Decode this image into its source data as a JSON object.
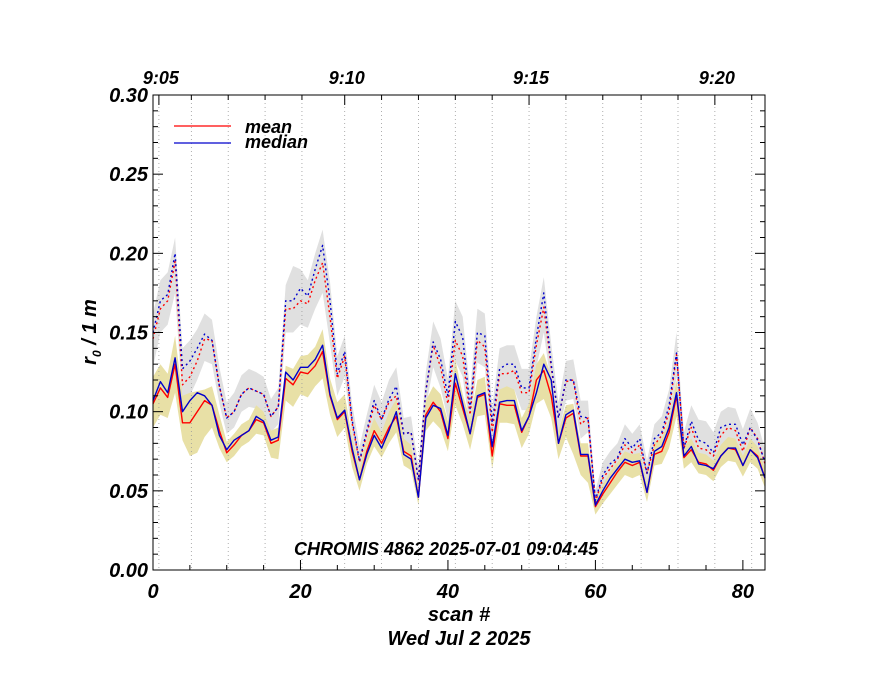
{
  "chart_data": {
    "type": "line",
    "title": "",
    "annotation": "CHROMIS 4862 2025-07-01 09:04:45",
    "xlabel": "scan #",
    "xlabel_date": "Wed Jul  2 2025",
    "ylabel_main": "r",
    "ylabel_sub": "0",
    "ylabel_rest": " / 1 m",
    "xlim": [
      0,
      83
    ],
    "ylim": [
      0,
      0.3
    ],
    "x_ticks": [
      {
        "value": 0,
        "label": "0"
      },
      {
        "value": 20,
        "label": "20"
      },
      {
        "value": 40,
        "label": "40"
      },
      {
        "value": 60,
        "label": "60"
      },
      {
        "value": 80,
        "label": "80"
      }
    ],
    "y_ticks": [
      {
        "value": 0.0,
        "label": "0.00"
      },
      {
        "value": 0.05,
        "label": "0.05"
      },
      {
        "value": 0.1,
        "label": "0.10"
      },
      {
        "value": 0.15,
        "label": "0.15"
      },
      {
        "value": 0.2,
        "label": "0.20"
      },
      {
        "value": 0.25,
        "label": "0.25"
      },
      {
        "value": 0.3,
        "label": "0.30"
      }
    ],
    "top_ticks": [
      {
        "value": 0.8,
        "label": "9:05"
      },
      {
        "value": 26.0,
        "label": "9:10"
      },
      {
        "value": 51.0,
        "label": "9:15"
      },
      {
        "value": 76.2,
        "label": "9:20"
      }
    ],
    "top_minor_ticks": [
      5.2,
      10.2,
      15.2,
      20.2,
      31.0,
      36.0,
      41.0,
      46.0,
      56.0,
      61.0,
      66.2,
      71.2,
      81.2
    ],
    "legend": {
      "position": "top-left",
      "entries": [
        {
          "name": "mean",
          "color": "#ff0000"
        },
        {
          "name": "median",
          "color": "#0000cc"
        }
      ]
    },
    "colors": {
      "mean": "#ff0000",
      "median": "#0000cc",
      "band_solid": "#e8e0a6",
      "band_dotted": "#e0e0e0"
    },
    "x": [
      0,
      1,
      2,
      3,
      4,
      5,
      6,
      7,
      8,
      9,
      10,
      11,
      12,
      13,
      14,
      15,
      16,
      17,
      18,
      19,
      20,
      21,
      22,
      23,
      24,
      25,
      26,
      27,
      28,
      29,
      30,
      31,
      32,
      33,
      34,
      35,
      36,
      37,
      38,
      39,
      40,
      41,
      42,
      43,
      44,
      45,
      46,
      47,
      48,
      49,
      50,
      51,
      52,
      53,
      54,
      55,
      56,
      57,
      58,
      59,
      60,
      61,
      62,
      63,
      64,
      65,
      66,
      67,
      68,
      69,
      70,
      71,
      72,
      73,
      74,
      75,
      76,
      77,
      78,
      79,
      80,
      81,
      82,
      83
    ],
    "series": [
      {
        "name": "mean",
        "values": [
          0.105,
          0.115,
          0.109,
          0.13,
          0.093,
          0.093,
          0.1,
          0.107,
          0.104,
          0.088,
          0.074,
          0.079,
          0.085,
          0.088,
          0.095,
          0.093,
          0.08,
          0.082,
          0.121,
          0.117,
          0.125,
          0.124,
          0.129,
          0.138,
          0.11,
          0.095,
          0.1,
          0.075,
          0.057,
          0.075,
          0.088,
          0.08,
          0.09,
          0.097,
          0.075,
          0.072,
          0.046,
          0.098,
          0.106,
          0.1,
          0.083,
          0.118,
          0.102,
          0.086,
          0.109,
          0.111,
          0.072,
          0.105,
          0.104,
          0.104,
          0.087,
          0.097,
          0.12,
          0.126,
          0.11,
          0.08,
          0.096,
          0.099,
          0.072,
          0.072,
          0.04,
          0.048,
          0.055,
          0.062,
          0.068,
          0.066,
          0.068,
          0.049,
          0.073,
          0.075,
          0.087,
          0.11,
          0.071,
          0.076,
          0.068,
          0.067,
          0.063,
          0.072,
          0.077,
          0.076,
          0.066,
          0.076,
          0.072,
          0.058
        ]
      },
      {
        "name": "median",
        "values": [
          0.107,
          0.119,
          0.112,
          0.134,
          0.1,
          0.107,
          0.112,
          0.11,
          0.104,
          0.085,
          0.076,
          0.082,
          0.085,
          0.088,
          0.097,
          0.094,
          0.082,
          0.084,
          0.125,
          0.12,
          0.128,
          0.128,
          0.133,
          0.142,
          0.111,
          0.096,
          0.101,
          0.077,
          0.057,
          0.073,
          0.085,
          0.077,
          0.088,
          0.1,
          0.073,
          0.07,
          0.046,
          0.096,
          0.104,
          0.102,
          0.085,
          0.124,
          0.105,
          0.086,
          0.11,
          0.112,
          0.078,
          0.106,
          0.107,
          0.107,
          0.088,
          0.097,
          0.112,
          0.13,
          0.12,
          0.08,
          0.098,
          0.101,
          0.073,
          0.073,
          0.041,
          0.05,
          0.058,
          0.064,
          0.07,
          0.068,
          0.069,
          0.049,
          0.075,
          0.078,
          0.09,
          0.112,
          0.072,
          0.078,
          0.067,
          0.066,
          0.064,
          0.072,
          0.077,
          0.077,
          0.066,
          0.076,
          0.071,
          0.058
        ]
      },
      {
        "name": "mean_dotted",
        "values": [
          0.146,
          0.165,
          0.17,
          0.195,
          0.117,
          0.122,
          0.132,
          0.146,
          0.145,
          0.116,
          0.096,
          0.1,
          0.111,
          0.115,
          0.113,
          0.111,
          0.097,
          0.103,
          0.165,
          0.165,
          0.17,
          0.168,
          0.183,
          0.194,
          0.16,
          0.121,
          0.135,
          0.093,
          0.068,
          0.086,
          0.104,
          0.095,
          0.106,
          0.11,
          0.086,
          0.087,
          0.057,
          0.113,
          0.142,
          0.128,
          0.105,
          0.145,
          0.135,
          0.098,
          0.145,
          0.141,
          0.087,
          0.124,
          0.124,
          0.126,
          0.112,
          0.112,
          0.142,
          0.166,
          0.128,
          0.096,
          0.119,
          0.12,
          0.092,
          0.096,
          0.043,
          0.058,
          0.064,
          0.07,
          0.079,
          0.074,
          0.079,
          0.061,
          0.079,
          0.085,
          0.1,
          0.136,
          0.077,
          0.09,
          0.077,
          0.076,
          0.072,
          0.085,
          0.09,
          0.088,
          0.075,
          0.09,
          0.083,
          0.067
        ]
      },
      {
        "name": "median_dotted",
        "values": [
          0.15,
          0.17,
          0.174,
          0.2,
          0.127,
          0.132,
          0.14,
          0.149,
          0.145,
          0.116,
          0.096,
          0.1,
          0.111,
          0.115,
          0.113,
          0.111,
          0.097,
          0.103,
          0.17,
          0.17,
          0.178,
          0.173,
          0.19,
          0.205,
          0.17,
          0.124,
          0.138,
          0.095,
          0.069,
          0.088,
          0.107,
          0.095,
          0.108,
          0.116,
          0.086,
          0.087,
          0.057,
          0.113,
          0.144,
          0.133,
          0.11,
          0.157,
          0.147,
          0.102,
          0.15,
          0.148,
          0.093,
          0.127,
          0.13,
          0.13,
          0.115,
          0.115,
          0.147,
          0.175,
          0.13,
          0.096,
          0.12,
          0.12,
          0.097,
          0.096,
          0.044,
          0.06,
          0.067,
          0.071,
          0.083,
          0.077,
          0.083,
          0.061,
          0.083,
          0.087,
          0.104,
          0.137,
          0.077,
          0.094,
          0.082,
          0.08,
          0.074,
          0.09,
          0.092,
          0.092,
          0.079,
          0.09,
          0.082,
          0.068
        ]
      }
    ],
    "band_solid": {
      "lower": [
        0.09,
        0.098,
        0.096,
        0.112,
        0.082,
        0.072,
        0.074,
        0.084,
        0.09,
        0.077,
        0.068,
        0.072,
        0.078,
        0.081,
        0.086,
        0.085,
        0.071,
        0.07,
        0.107,
        0.103,
        0.111,
        0.109,
        0.116,
        0.121,
        0.098,
        0.084,
        0.09,
        0.065,
        0.05,
        0.067,
        0.078,
        0.071,
        0.08,
        0.087,
        0.066,
        0.063,
        0.041,
        0.088,
        0.094,
        0.089,
        0.075,
        0.104,
        0.092,
        0.076,
        0.097,
        0.098,
        0.064,
        0.093,
        0.093,
        0.092,
        0.077,
        0.086,
        0.105,
        0.108,
        0.096,
        0.07,
        0.084,
        0.073,
        0.06,
        0.055,
        0.035,
        0.042,
        0.048,
        0.054,
        0.06,
        0.058,
        0.06,
        0.043,
        0.066,
        0.067,
        0.077,
        0.097,
        0.064,
        0.068,
        0.061,
        0.06,
        0.056,
        0.065,
        0.069,
        0.068,
        0.059,
        0.068,
        0.064,
        0.052
      ],
      "upper": [
        0.122,
        0.13,
        0.124,
        0.148,
        0.11,
        0.112,
        0.113,
        0.114,
        0.116,
        0.098,
        0.081,
        0.086,
        0.092,
        0.095,
        0.104,
        0.1,
        0.088,
        0.09,
        0.129,
        0.127,
        0.135,
        0.136,
        0.141,
        0.152,
        0.121,
        0.106,
        0.111,
        0.084,
        0.064,
        0.083,
        0.096,
        0.087,
        0.1,
        0.108,
        0.083,
        0.079,
        0.052,
        0.107,
        0.116,
        0.111,
        0.094,
        0.133,
        0.111,
        0.095,
        0.12,
        0.122,
        0.08,
        0.114,
        0.116,
        0.114,
        0.096,
        0.105,
        0.13,
        0.137,
        0.122,
        0.088,
        0.104,
        0.105,
        0.08,
        0.08,
        0.045,
        0.054,
        0.062,
        0.068,
        0.075,
        0.073,
        0.074,
        0.055,
        0.08,
        0.083,
        0.095,
        0.12,
        0.078,
        0.083,
        0.074,
        0.073,
        0.069,
        0.079,
        0.084,
        0.083,
        0.072,
        0.083,
        0.078,
        0.064
      ]
    },
    "band_dotted": {
      "lower": [
        0.128,
        0.15,
        0.155,
        0.175,
        0.105,
        0.11,
        0.12,
        0.132,
        0.13,
        0.105,
        0.086,
        0.09,
        0.1,
        0.103,
        0.102,
        0.1,
        0.087,
        0.092,
        0.15,
        0.15,
        0.155,
        0.153,
        0.165,
        0.175,
        0.143,
        0.11,
        0.122,
        0.084,
        0.061,
        0.078,
        0.094,
        0.086,
        0.096,
        0.1,
        0.078,
        0.079,
        0.051,
        0.102,
        0.128,
        0.115,
        0.095,
        0.132,
        0.122,
        0.089,
        0.131,
        0.128,
        0.079,
        0.112,
        0.112,
        0.114,
        0.101,
        0.101,
        0.128,
        0.15,
        0.116,
        0.087,
        0.107,
        0.108,
        0.083,
        0.087,
        0.039,
        0.052,
        0.058,
        0.063,
        0.071,
        0.067,
        0.071,
        0.055,
        0.071,
        0.077,
        0.09,
        0.122,
        0.07,
        0.081,
        0.07,
        0.069,
        0.065,
        0.077,
        0.081,
        0.079,
        0.068,
        0.081,
        0.075,
        0.061
      ],
      "upper": [
        0.162,
        0.183,
        0.188,
        0.21,
        0.14,
        0.145,
        0.152,
        0.162,
        0.158,
        0.128,
        0.106,
        0.112,
        0.123,
        0.127,
        0.125,
        0.122,
        0.108,
        0.115,
        0.18,
        0.192,
        0.19,
        0.183,
        0.2,
        0.215,
        0.182,
        0.135,
        0.148,
        0.105,
        0.078,
        0.098,
        0.117,
        0.106,
        0.12,
        0.128,
        0.096,
        0.097,
        0.065,
        0.125,
        0.157,
        0.146,
        0.121,
        0.17,
        0.16,
        0.113,
        0.165,
        0.162,
        0.103,
        0.14,
        0.142,
        0.142,
        0.127,
        0.127,
        0.16,
        0.185,
        0.143,
        0.106,
        0.132,
        0.133,
        0.107,
        0.107,
        0.05,
        0.068,
        0.075,
        0.08,
        0.092,
        0.086,
        0.092,
        0.069,
        0.092,
        0.097,
        0.114,
        0.15,
        0.087,
        0.104,
        0.095,
        0.094,
        0.087,
        0.1,
        0.103,
        0.102,
        0.089,
        0.102,
        0.093,
        0.076
      ]
    }
  }
}
